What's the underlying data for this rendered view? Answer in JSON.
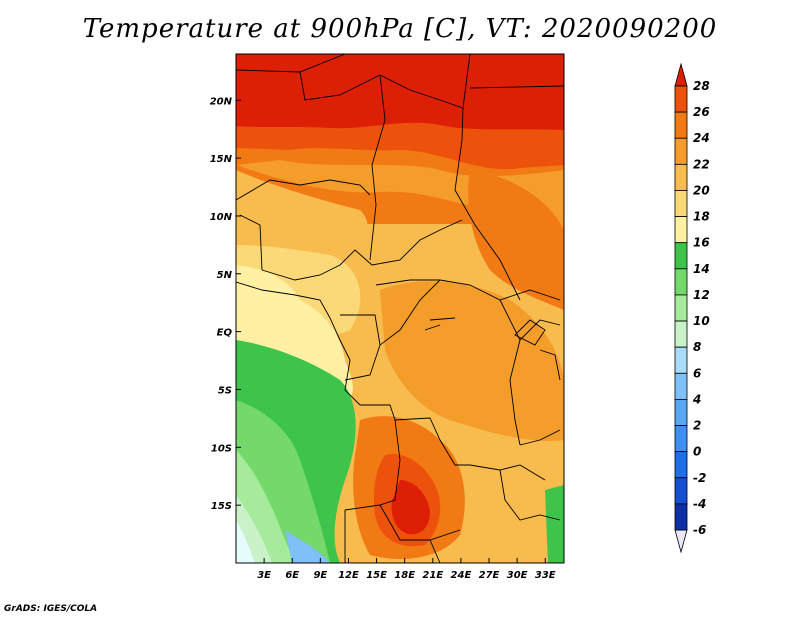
{
  "title": "Temperature at 900hPa [C], VT: 2020090200",
  "credit": "GrADS: IGES/COLA",
  "chart_data": {
    "type": "heatmap",
    "title": "Temperature at 900hPa [C], VT: 2020090200",
    "variable": "Temperature",
    "level": "900hPa",
    "units": "C",
    "valid_time": "2020090200",
    "x_range_deg": [
      0,
      35
    ],
    "y_range_deg": [
      -20,
      24
    ],
    "x_ticks": [
      {
        "value": 3,
        "label": "3E"
      },
      {
        "value": 6,
        "label": "6E"
      },
      {
        "value": 9,
        "label": "9E"
      },
      {
        "value": 12,
        "label": "12E"
      },
      {
        "value": 15,
        "label": "15E"
      },
      {
        "value": 18,
        "label": "18E"
      },
      {
        "value": 21,
        "label": "21E"
      },
      {
        "value": 24,
        "label": "24E"
      },
      {
        "value": 27,
        "label": "27E"
      },
      {
        "value": 30,
        "label": "30E"
      },
      {
        "value": 33,
        "label": "33E"
      }
    ],
    "y_ticks": [
      {
        "value": 20,
        "label": "20N"
      },
      {
        "value": 15,
        "label": "15N"
      },
      {
        "value": 10,
        "label": "10N"
      },
      {
        "value": 5,
        "label": "5N"
      },
      {
        "value": 0,
        "label": "EQ"
      },
      {
        "value": -5,
        "label": "5S"
      },
      {
        "value": -10,
        "label": "10S"
      },
      {
        "value": -15,
        "label": "15S"
      }
    ],
    "colorbar": {
      "levels": [
        "-6",
        "-4",
        "-2",
        "0",
        "2",
        "4",
        "6",
        "8",
        "10",
        "12",
        "14",
        "16",
        "18",
        "20",
        "22",
        "24",
        "26",
        "28"
      ],
      "colors": [
        "#0a0a78",
        "#0f2fa6",
        "#1650d2",
        "#1e6ee6",
        "#3d8ff2",
        "#5aa8f4",
        "#7ec0f7",
        "#a8dcf8",
        "#c9f2c9",
        "#a6ea9c",
        "#74d96a",
        "#3ec44a",
        "#fff0a3",
        "#fbd878",
        "#f7bb4e",
        "#f59d2a",
        "#f27a14",
        "#ed520c",
        "#dd1f06"
      ],
      "extend": "both"
    },
    "regions": [
      {
        "band_lat": [
          16,
          24
        ],
        "value_range_C": "26-28+"
      },
      {
        "band_lat": [
          10,
          16
        ],
        "value_range_C": "20-26"
      },
      {
        "band_lat": [
          0,
          10
        ],
        "value_range_C": "16-24"
      },
      {
        "band_lat": [
          -10,
          0
        ],
        "value_range_C": "12-24 (coast cooler)"
      },
      {
        "band_lat": [
          -20,
          -10
        ],
        "value_range_C": "8-28 (SW coast coolest, interior hottest)"
      }
    ]
  }
}
